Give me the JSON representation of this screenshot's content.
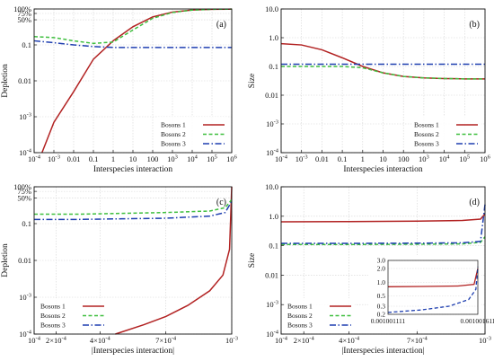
{
  "chart_data": [
    {
      "id": "a",
      "type": "line",
      "panel_label": "(a)",
      "xlabel": "Interspecies interaction",
      "ylabel": "Depletion",
      "xscale": "log",
      "yscale": "log",
      "xlim": [
        0.0001,
        1000000
      ],
      "ylim": [
        0.0001,
        1
      ],
      "xticks": [
        "10^-4",
        "10^-3",
        "0.01",
        "0.1",
        "1",
        "10",
        "100",
        "10^3",
        "10^4",
        "10^5",
        "10^6"
      ],
      "yticks": [
        "10^-4",
        "10^-3",
        "0.01",
        "0.1",
        "50%",
        "75%",
        "100%"
      ],
      "grid": true,
      "legend_position": "bottom-right",
      "series": [
        {
          "name": "Bosons 1",
          "color": "#b22222",
          "style": "solid",
          "x": [
            0.00025,
            0.001,
            0.01,
            0.1,
            1,
            10,
            100,
            1000,
            10000,
            100000,
            1000000
          ],
          "y": [
            0.0001,
            0.0007,
            0.005,
            0.04,
            0.13,
            0.32,
            0.6,
            0.82,
            0.94,
            0.98,
            0.99
          ]
        },
        {
          "name": "Bosons 2",
          "color": "#3fbf3f",
          "style": "dashed",
          "x": [
            0.0001,
            0.001,
            0.01,
            0.1,
            1,
            10,
            100,
            1000,
            10000,
            100000,
            1000000
          ],
          "y": [
            0.17,
            0.16,
            0.13,
            0.11,
            0.12,
            0.26,
            0.55,
            0.8,
            0.93,
            0.98,
            0.99
          ]
        },
        {
          "name": "Bosons 3",
          "color": "#1f3fb0",
          "style": "dashdot",
          "x": [
            0.0001,
            0.001,
            0.01,
            0.1,
            1,
            10,
            100,
            1000,
            10000,
            100000,
            1000000
          ],
          "y": [
            0.13,
            0.115,
            0.1,
            0.09,
            0.085,
            0.085,
            0.085,
            0.085,
            0.085,
            0.085,
            0.085
          ]
        }
      ]
    },
    {
      "id": "b",
      "type": "line",
      "panel_label": "(b)",
      "xlabel": "Interspecies interaction",
      "ylabel": "Size",
      "xscale": "log",
      "yscale": "log",
      "xlim": [
        0.0001,
        1000000
      ],
      "ylim": [
        0.0001,
        10
      ],
      "xticks": [
        "10^-4",
        "10^-3",
        "0.01",
        "0.1",
        "1",
        "10",
        "100",
        "10^3",
        "10^4",
        "10^5",
        "10^6"
      ],
      "yticks": [
        "10^-4",
        "10^-3",
        "0.01",
        "0.1",
        "1.0",
        "10.0"
      ],
      "grid": true,
      "legend_position": "bottom-right",
      "series": [
        {
          "name": "Bosons 1",
          "color": "#b22222",
          "style": "solid",
          "x": [
            0.0001,
            0.001,
            0.01,
            0.1,
            1,
            10,
            100,
            1000,
            10000,
            100000,
            1000000
          ],
          "y": [
            0.62,
            0.56,
            0.38,
            0.2,
            0.1,
            0.06,
            0.045,
            0.04,
            0.038,
            0.037,
            0.037
          ]
        },
        {
          "name": "Bosons 2",
          "color": "#3fbf3f",
          "style": "dashed",
          "x": [
            0.0001,
            0.001,
            0.01,
            0.1,
            1,
            10,
            100,
            1000,
            10000,
            100000,
            1000000
          ],
          "y": [
            0.1,
            0.1,
            0.1,
            0.1,
            0.09,
            0.06,
            0.045,
            0.04,
            0.038,
            0.037,
            0.037
          ]
        },
        {
          "name": "Bosons 3",
          "color": "#1f3fb0",
          "style": "dashdot",
          "x": [
            0.0001,
            1000000
          ],
          "y": [
            0.12,
            0.12
          ]
        }
      ]
    },
    {
      "id": "c",
      "type": "line",
      "panel_label": "(c)",
      "xlabel": "|Interspecies interaction|",
      "ylabel": "Depletion",
      "xscale": "linear",
      "yscale": "log",
      "xlim": [
        0.0001,
        0.001
      ],
      "ylim": [
        0.0001,
        1
      ],
      "xticks": [
        "10^-4",
        "2×10^-4",
        "4×10^-4",
        "7×10^-4",
        "10^-3"
      ],
      "yticks": [
        "10^-4",
        "10^-3",
        "0.01",
        "0.1",
        "50%",
        "75%",
        "100%"
      ],
      "grid": true,
      "legend_position": "bottom-left",
      "series": [
        {
          "name": "Bosons 1",
          "color": "#b22222",
          "style": "solid",
          "x": [
            0.00047,
            0.0006,
            0.0007,
            0.0008,
            0.0009,
            0.00096,
            0.00099,
            0.001
          ],
          "y": [
            0.0001,
            0.00018,
            0.0003,
            0.0006,
            0.0015,
            0.004,
            0.02,
            1
          ]
        },
        {
          "name": "Bosons 2",
          "color": "#3fbf3f",
          "style": "dashed",
          "x": [
            0.0001,
            0.0003,
            0.0005,
            0.0007,
            0.0009,
            0.00097,
            0.001
          ],
          "y": [
            0.18,
            0.18,
            0.19,
            0.2,
            0.22,
            0.27,
            0.45
          ]
        },
        {
          "name": "Bosons 3",
          "color": "#1f3fb0",
          "style": "dashdot",
          "x": [
            0.0001,
            0.0003,
            0.0005,
            0.0007,
            0.0009,
            0.00097,
            0.001
          ],
          "y": [
            0.13,
            0.13,
            0.135,
            0.14,
            0.16,
            0.2,
            0.4
          ]
        }
      ]
    },
    {
      "id": "d",
      "type": "line",
      "panel_label": "(d)",
      "xlabel": "|Interspecies interaction|",
      "ylabel": "Size",
      "xscale": "linear",
      "yscale": "log",
      "xlim": [
        0.0001,
        0.001
      ],
      "ylim": [
        0.0001,
        10
      ],
      "xticks": [
        "10^-4",
        "2×10^-4",
        "4×10^-4",
        "7×10^-4",
        "10^-3"
      ],
      "yticks": [
        "10^-4",
        "10^-3",
        "0.01",
        "0.1",
        "1.0",
        "10.0"
      ],
      "grid": true,
      "legend_position": "bottom-left",
      "series": [
        {
          "name": "Bosons 1",
          "color": "#b22222",
          "style": "solid",
          "x": [
            0.0001,
            0.0004,
            0.0007,
            0.0009,
            0.00098,
            0.001
          ],
          "y": [
            0.65,
            0.66,
            0.68,
            0.72,
            0.8,
            1.2
          ]
        },
        {
          "name": "Bosons 2",
          "color": "#3fbf3f",
          "style": "dashed",
          "x": [
            0.0001,
            0.0004,
            0.0007,
            0.0009,
            0.00098,
            0.001
          ],
          "y": [
            0.11,
            0.11,
            0.112,
            0.115,
            0.13,
            0.2
          ]
        },
        {
          "name": "Bosons 3",
          "color": "#1f3fb0",
          "style": "dashdot",
          "x": [
            0.0001,
            0.0004,
            0.0007,
            0.0009,
            0.00098,
            0.001
          ],
          "y": [
            0.12,
            0.12,
            0.122,
            0.125,
            0.14,
            2.5
          ]
        }
      ],
      "inset": {
        "type": "line",
        "xscale": "linear",
        "yscale": "log",
        "xlim": [
          0.001001111,
          0.001001611
        ],
        "ylim": [
          0.2,
          3.0
        ],
        "xticks": [
          "0.001001111",
          "0.001001611"
        ],
        "yticks": [
          "0.2",
          "0.3",
          "0.5",
          "1.0",
          "2.0",
          "3.0"
        ],
        "series": [
          {
            "name": "Bosons 1",
            "color": "#b22222",
            "style": "solid",
            "x": [
              0.001001111,
              0.0010013,
              0.0010015,
              0.00100159,
              0.001001611
            ],
            "y": [
              0.8,
              0.81,
              0.83,
              0.9,
              2.0
            ]
          },
          {
            "name": "Bosons 3",
            "color": "#1f3fb0",
            "style": "dashed",
            "x": [
              0.001001111,
              0.0010013,
              0.00100145,
              0.00100156,
              0.0010016,
              0.001001611
            ],
            "y": [
              0.22,
              0.25,
              0.3,
              0.42,
              0.7,
              2.2
            ]
          }
        ]
      }
    }
  ]
}
